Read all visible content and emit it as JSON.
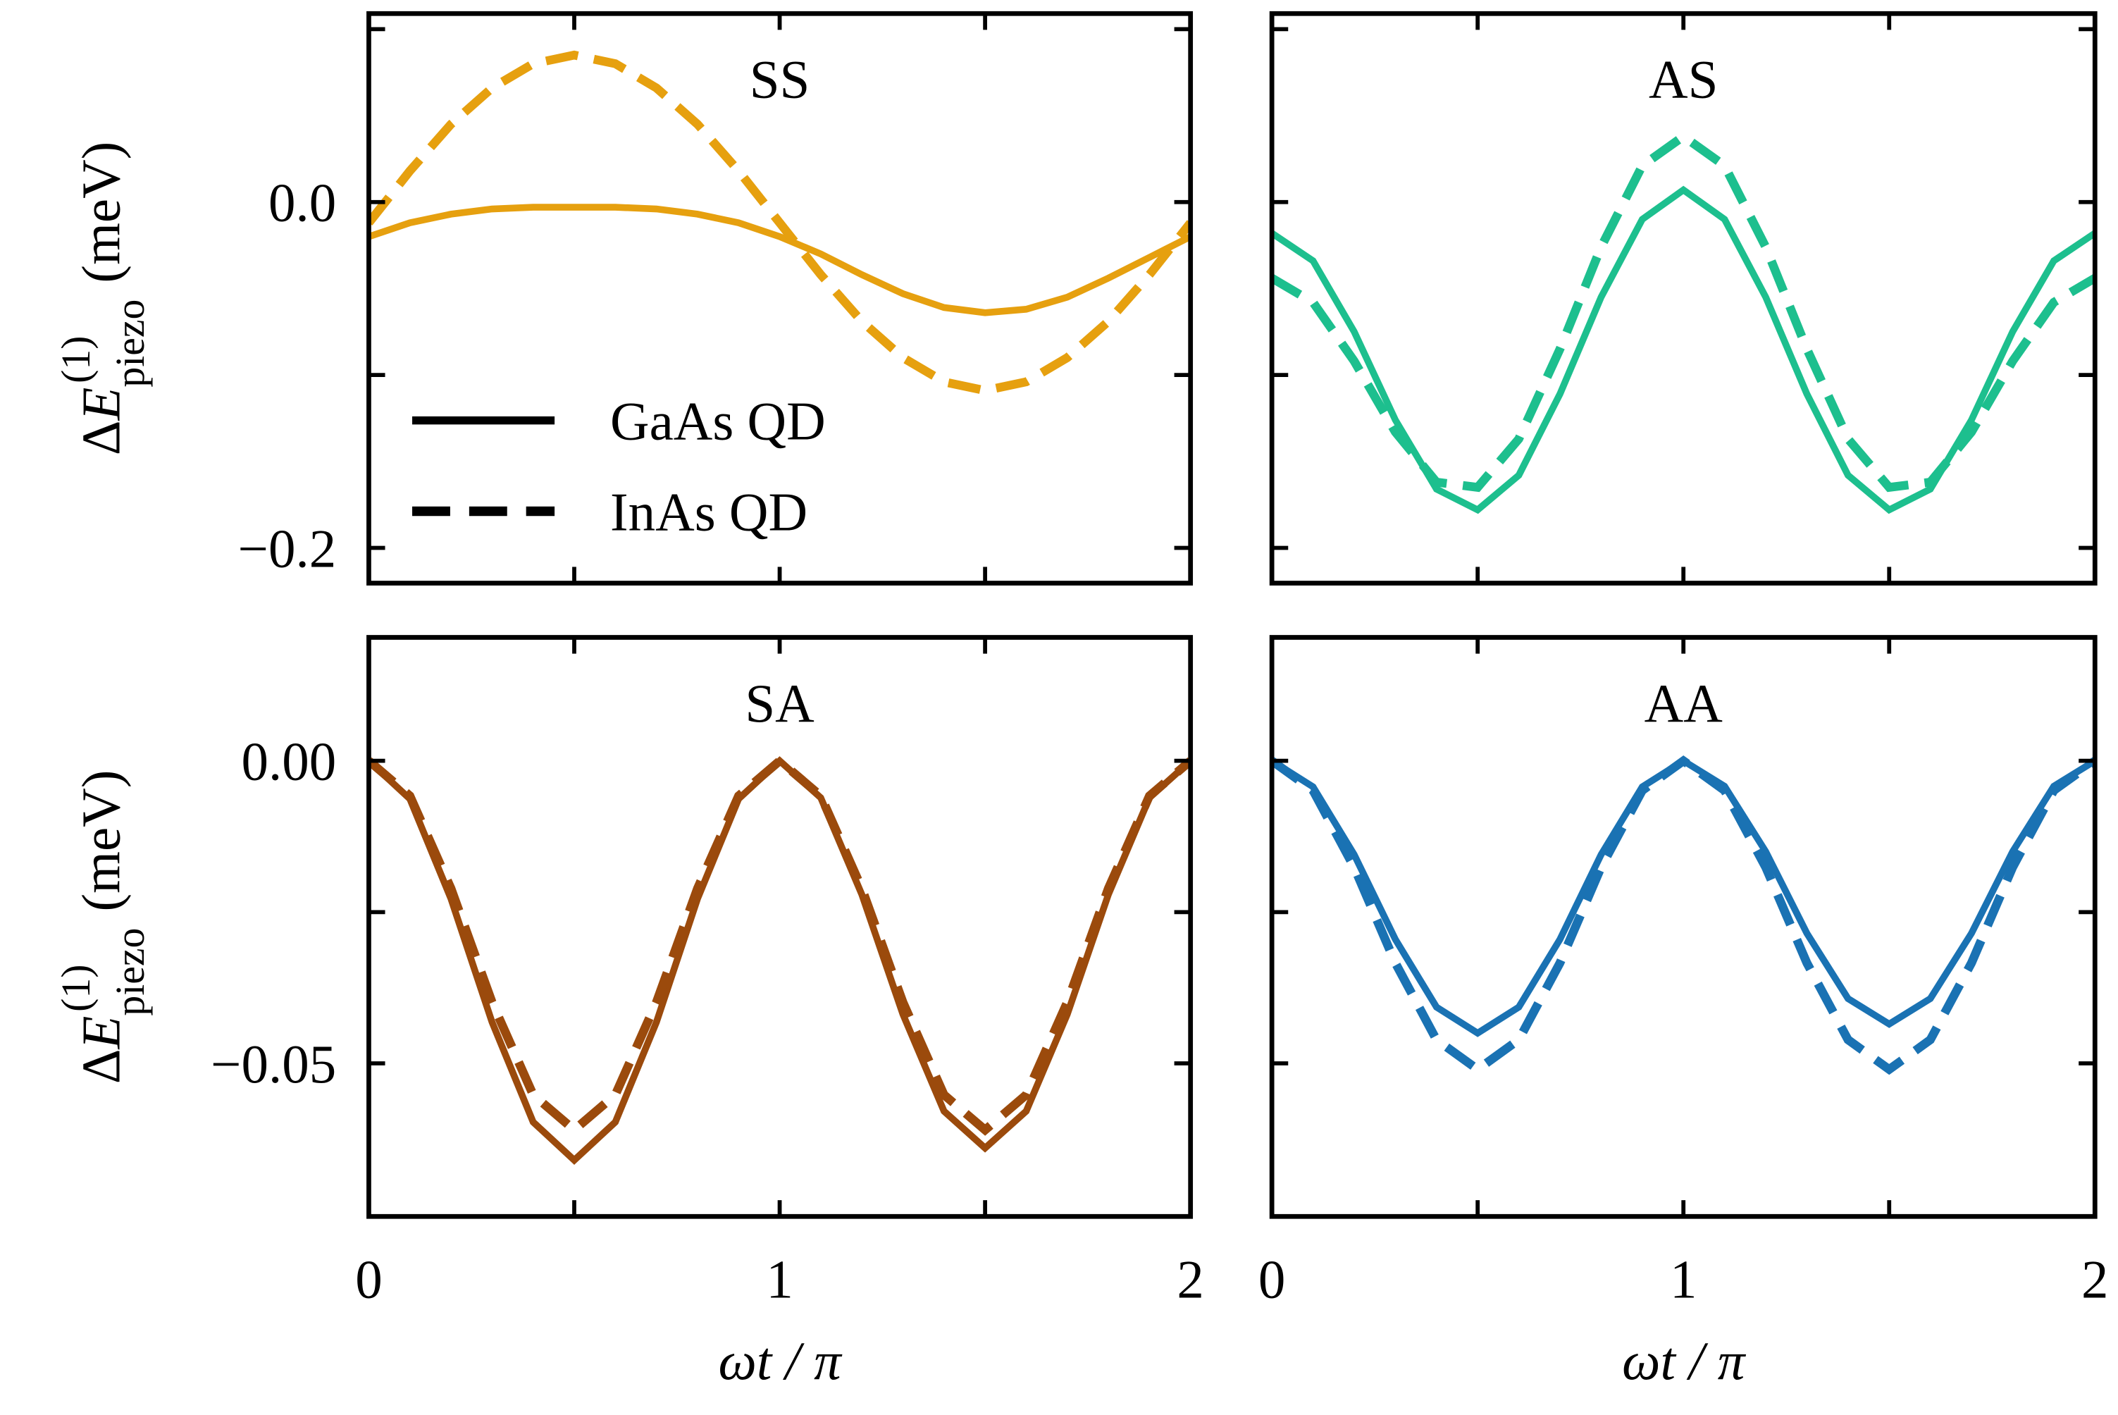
{
  "chart_data": [
    {
      "type": "line",
      "title": "SS",
      "color": "#e6a00f",
      "x": [
        0,
        0.1,
        0.2,
        0.3,
        0.4,
        0.5,
        0.6,
        0.7,
        0.8,
        0.9,
        1,
        1.1,
        1.2,
        1.3,
        1.4,
        1.5,
        1.6,
        1.7,
        1.8,
        1.9,
        2
      ],
      "series": [
        {
          "name": "GaAs QD",
          "dashed": false,
          "values": [
            -0.02,
            -0.012,
            -0.007,
            -0.004,
            -0.003,
            -0.003,
            -0.003,
            -0.004,
            -0.007,
            -0.012,
            -0.02,
            -0.03,
            -0.042,
            -0.053,
            -0.061,
            -0.064,
            -0.062,
            -0.055,
            -0.044,
            -0.032,
            -0.02
          ]
        },
        {
          "name": "InAs QD",
          "dashed": true,
          "values": [
            -0.012,
            0.018,
            0.045,
            0.066,
            0.08,
            0.085,
            0.08,
            0.066,
            0.045,
            0.018,
            -0.012,
            -0.042,
            -0.069,
            -0.09,
            -0.104,
            -0.109,
            -0.104,
            -0.09,
            -0.069,
            -0.042,
            -0.012
          ]
        }
      ],
      "xlim": [
        0,
        2
      ],
      "xticks_unlabeled": [
        0,
        0.5,
        1,
        1.5,
        2
      ],
      "ylim": [
        -0.2204,
        0.109
      ],
      "yticks": [
        {
          "value": 0,
          "label": "0.0"
        },
        {
          "value": -0.2,
          "label": "−0.2"
        }
      ],
      "yticks_unlabeled": [
        0.1,
        -0.1
      ],
      "ylabel": [
        "Δ",
        "E",
        "(1)",
        "piezo",
        "(meV)"
      ],
      "legend_loc": "lower left",
      "legend_color": "#000000"
    },
    {
      "type": "line",
      "title": "AS",
      "color": "#1dbf8e",
      "x": [
        0,
        0.1,
        0.2,
        0.3,
        0.4,
        0.5,
        0.6,
        0.7,
        0.8,
        0.9,
        1,
        1.1,
        1.2,
        1.3,
        1.4,
        1.5,
        1.6,
        1.7,
        1.8,
        1.9,
        2
      ],
      "series": [
        {
          "dashed": false,
          "values": [
            -0.018,
            -0.034,
            -0.075,
            -0.126,
            -0.166,
            -0.178,
            -0.158,
            -0.111,
            -0.055,
            -0.01,
            0.007,
            -0.01,
            -0.055,
            -0.111,
            -0.158,
            -0.178,
            -0.166,
            -0.126,
            -0.075,
            -0.034,
            -0.018
          ]
        },
        {
          "dashed": true,
          "values": [
            -0.044,
            -0.058,
            -0.092,
            -0.133,
            -0.162,
            -0.165,
            -0.137,
            -0.085,
            -0.026,
            0.021,
            0.038,
            0.021,
            -0.026,
            -0.085,
            -0.137,
            -0.165,
            -0.162,
            -0.133,
            -0.092,
            -0.058,
            -0.044
          ]
        }
      ],
      "xlim": [
        0,
        2
      ],
      "xticks_unlabeled": [
        0,
        0.5,
        1,
        1.5,
        2
      ],
      "ylim": [
        -0.2204,
        0.109
      ],
      "yticks_unlabeled": [
        0.1,
        0,
        -0.1,
        -0.2
      ]
    },
    {
      "type": "line",
      "title": "SA",
      "color": "#9b4a0c",
      "x": [
        0,
        0.1,
        0.2,
        0.3,
        0.4,
        0.5,
        0.6,
        0.7,
        0.8,
        0.9,
        1,
        1.1,
        1.2,
        1.3,
        1.4,
        1.5,
        1.6,
        1.7,
        1.8,
        1.9,
        2
      ],
      "series": [
        {
          "dashed": false,
          "values": [
            0,
            -0.0063,
            -0.0228,
            -0.0432,
            -0.0597,
            -0.066,
            -0.0597,
            -0.0432,
            -0.0228,
            -0.0063,
            0,
            -0.0061,
            -0.0221,
            -0.0419,
            -0.0579,
            -0.064,
            -0.0579,
            -0.0419,
            -0.0221,
            -0.0061,
            0
          ]
        },
        {
          "dashed": true,
          "values": [
            0,
            -0.0058,
            -0.0211,
            -0.0399,
            -0.0552,
            -0.061,
            -0.0552,
            -0.0399,
            -0.0211,
            -0.0058,
            0,
            -0.0058,
            -0.0211,
            -0.0399,
            -0.0552,
            -0.061,
            -0.0552,
            -0.0399,
            -0.0211,
            -0.0058,
            0
          ]
        }
      ],
      "xlim": [
        0,
        2
      ],
      "xticks": [
        0,
        1,
        2
      ],
      "xticks_unlabeled": [
        0.5,
        1.5
      ],
      "xlabel": "ωt / π",
      "ylim": [
        -0.0753,
        0.0204
      ],
      "yticks": [
        {
          "value": 0,
          "label": "0.00"
        },
        {
          "value": -0.05,
          "label": "−0.05"
        }
      ],
      "yticks_unlabeled": [
        -0.025
      ],
      "ylabel": [
        "Δ",
        "E",
        "(1)",
        "piezo",
        "(meV)"
      ]
    },
    {
      "type": "line",
      "title": "AA",
      "color": "#1a72b3",
      "x": [
        0,
        0.1,
        0.2,
        0.3,
        0.4,
        0.5,
        0.6,
        0.7,
        0.8,
        0.9,
        1,
        1.1,
        1.2,
        1.3,
        1.4,
        1.5,
        1.6,
        1.7,
        1.8,
        1.9,
        2
      ],
      "series": [
        {
          "dashed": false,
          "values": [
            0,
            -0.0043,
            -0.0155,
            -0.0295,
            -0.0407,
            -0.045,
            -0.0407,
            -0.0295,
            -0.0155,
            -0.0043,
            0,
            -0.0042,
            -0.015,
            -0.0285,
            -0.0393,
            -0.0435,
            -0.0393,
            -0.0285,
            -0.015,
            -0.0042,
            0
          ]
        },
        {
          "dashed": true,
          "values": [
            0,
            -0.0049,
            -0.0176,
            -0.0334,
            -0.0461,
            -0.051,
            -0.0461,
            -0.0334,
            -0.0176,
            -0.0049,
            0,
            -0.0049,
            -0.0176,
            -0.0334,
            -0.0461,
            -0.051,
            -0.0461,
            -0.0334,
            -0.0176,
            -0.0049,
            0
          ]
        }
      ],
      "xlim": [
        0,
        2
      ],
      "xticks": [
        0,
        1,
        2
      ],
      "xticks_unlabeled": [
        0.5,
        1.5
      ],
      "xlabel": "ωt / π",
      "ylim": [
        -0.0753,
        0.0204
      ],
      "yticks_unlabeled": [
        0,
        -0.025,
        -0.05
      ]
    }
  ]
}
